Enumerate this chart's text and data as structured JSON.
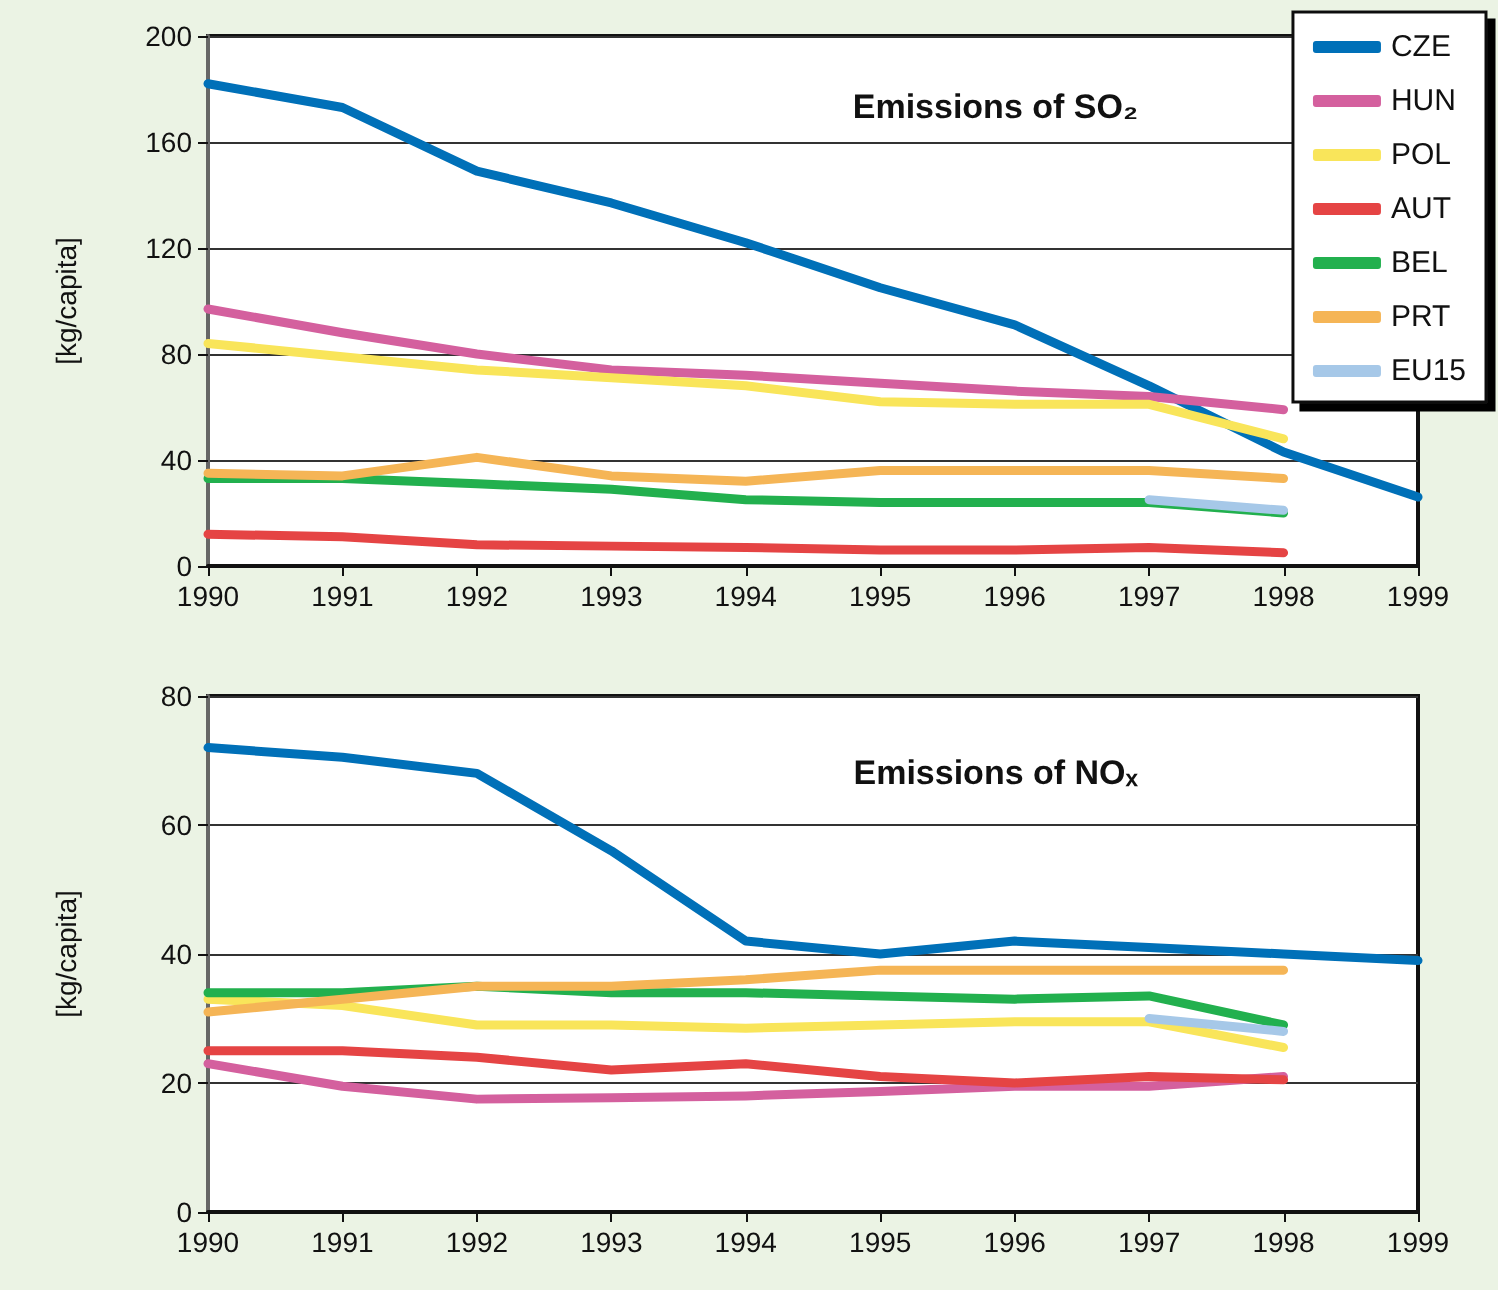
{
  "chart_data": [
    {
      "type": "line",
      "title": "Emissions of SO₂",
      "ylabel": "[kg/capita]",
      "categories": [
        "1990",
        "1991",
        "1992",
        "1993",
        "1994",
        "1995",
        "1996",
        "1997",
        "1998",
        "1999"
      ],
      "ylim": [
        0,
        200
      ],
      "yticks": [
        0,
        40,
        80,
        120,
        160,
        200
      ],
      "grid": "y",
      "legend": "top right",
      "marker": "none",
      "line_style": "solid",
      "series": [
        {
          "name": "CZE",
          "color": "#0070b8",
          "values": [
            182,
            173,
            149,
            137,
            122,
            105,
            91,
            68,
            43,
            26
          ]
        },
        {
          "name": "HUN",
          "color": "#d4609e",
          "values": [
            97,
            88,
            80,
            74,
            72,
            69,
            66,
            64,
            59,
            null
          ]
        },
        {
          "name": "POL",
          "color": "#f9e55a",
          "values": [
            84,
            79,
            74,
            71,
            68,
            62,
            61,
            61,
            48,
            null
          ]
        },
        {
          "name": "AUT",
          "color": "#e54444",
          "values": [
            12,
            11,
            8,
            7.5,
            7,
            6,
            6,
            7,
            5,
            null
          ]
        },
        {
          "name": "BEL",
          "color": "#22b04e",
          "values": [
            33,
            33,
            31,
            29,
            25,
            24,
            24,
            24,
            20,
            null
          ]
        },
        {
          "name": "PRT",
          "color": "#f5b556",
          "values": [
            35,
            34,
            41,
            34,
            32,
            36,
            36,
            36,
            33,
            null
          ]
        },
        {
          "name": "EU15",
          "color": "#a6c8e8",
          "values": [
            null,
            null,
            null,
            null,
            null,
            null,
            null,
            25,
            21,
            null
          ]
        }
      ]
    },
    {
      "type": "line",
      "title": "Emissions of NOₓ",
      "ylabel": "[kg/capita]",
      "categories": [
        "1990",
        "1991",
        "1992",
        "1993",
        "1994",
        "1995",
        "1996",
        "1997",
        "1998",
        "1999"
      ],
      "ylim": [
        0,
        80
      ],
      "yticks": [
        0,
        20,
        40,
        60,
        80
      ],
      "grid": "y",
      "marker": "none",
      "line_style": "solid",
      "series": [
        {
          "color": "#0070b8",
          "values": [
            72,
            70.5,
            68,
            56,
            42,
            40,
            42,
            41,
            40,
            39
          ]
        },
        {
          "color": "#d4609e",
          "values": [
            23,
            19.5,
            17.5,
            17.7,
            18,
            18.7,
            19.5,
            19.5,
            21,
            null
          ]
        },
        {
          "color": "#f9e55a",
          "values": [
            33,
            32,
            29,
            29,
            28.5,
            29,
            29.5,
            29.5,
            25.5,
            null
          ]
        },
        {
          "color": "#e54444",
          "values": [
            25,
            25,
            24,
            22,
            23,
            21,
            20,
            21,
            20.5,
            null
          ]
        },
        {
          "color": "#22b04e",
          "values": [
            34,
            34,
            35,
            34,
            34,
            33.5,
            33,
            33.5,
            29,
            null
          ]
        },
        {
          "color": "#f5b556",
          "values": [
            31,
            33,
            35,
            35,
            36,
            37.5,
            37.5,
            37.5,
            37.5,
            null
          ]
        },
        {
          "color": "#a6c8e8",
          "values": [
            null,
            null,
            null,
            null,
            null,
            null,
            null,
            30,
            28,
            null
          ]
        }
      ]
    }
  ]
}
